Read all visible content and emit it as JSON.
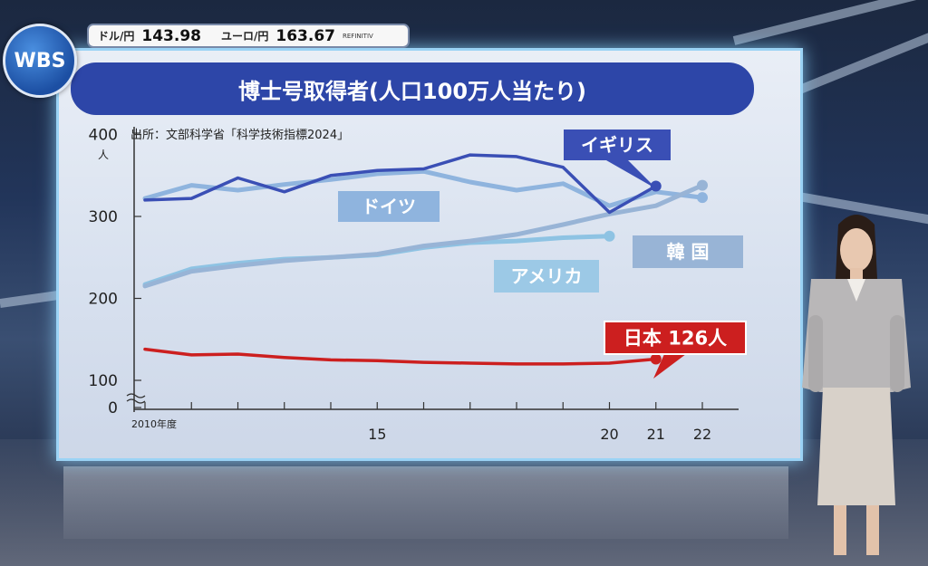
{
  "logo": {
    "text": "WBS"
  },
  "ticker": {
    "usd_label": "ドル/円",
    "usd_value": "143.98",
    "eur_label": "ユーロ/円",
    "eur_value": "163.67",
    "source": "REFINITIV"
  },
  "chart_data": {
    "type": "line",
    "title": "博士号取得者(人口100万人当たり)",
    "source": "出所：文部科学省「科学技術指標2024」",
    "y_unit": "人",
    "y_ticks": [
      0,
      100,
      200,
      300,
      400
    ],
    "ylim": [
      0,
      400
    ],
    "axis_break": true,
    "xlim": [
      2010,
      2022
    ],
    "x_ticks": [
      {
        "value": 2010,
        "label": "2010年度"
      },
      {
        "value": 2015,
        "label": "15"
      },
      {
        "value": 2020,
        "label": "20"
      },
      {
        "value": 2021,
        "label": "21"
      },
      {
        "value": 2022,
        "label": "22"
      }
    ],
    "grid": false,
    "series": [
      {
        "name": "イギリス",
        "color": "#3a4fb5",
        "x": [
          2010,
          2011,
          2012,
          2013,
          2014,
          2015,
          2016,
          2017,
          2018,
          2019,
          2020,
          2021
        ],
        "y": [
          320,
          322,
          347,
          330,
          350,
          356,
          358,
          375,
          373,
          360,
          305,
          337
        ]
      },
      {
        "name": "ドイツ",
        "color": "#8fb4de",
        "x": [
          2010,
          2011,
          2012,
          2013,
          2014,
          2015,
          2016,
          2017,
          2018,
          2019,
          2020,
          2021,
          2022
        ],
        "y": [
          322,
          338,
          332,
          339,
          345,
          352,
          355,
          342,
          332,
          340,
          313,
          330,
          323
        ]
      },
      {
        "name": "アメリカ",
        "color": "#8ec3e3",
        "x": [
          2010,
          2011,
          2012,
          2013,
          2014,
          2015,
          2016,
          2017,
          2018,
          2019,
          2020
        ],
        "y": [
          217,
          236,
          243,
          248,
          250,
          253,
          262,
          268,
          270,
          274,
          276
        ]
      },
      {
        "name": "韓国",
        "color": "#98b4d6",
        "x": [
          2010,
          2011,
          2012,
          2013,
          2014,
          2015,
          2016,
          2017,
          2018,
          2019,
          2020,
          2021,
          2022
        ],
        "y": [
          215,
          233,
          240,
          246,
          250,
          254,
          264,
          270,
          278,
          290,
          303,
          313,
          338
        ]
      },
      {
        "name": "日本",
        "color": "#cc1f1f",
        "x": [
          2010,
          2011,
          2012,
          2013,
          2014,
          2015,
          2016,
          2017,
          2018,
          2019,
          2020,
          2021
        ],
        "y": [
          138,
          131,
          132,
          128,
          125,
          124,
          122,
          121,
          120,
          120,
          121,
          126
        ]
      }
    ],
    "callouts": [
      {
        "series": "イギリス",
        "text": "イギリス"
      },
      {
        "series": "ドイツ",
        "text": "ドイツ"
      },
      {
        "series": "アメリカ",
        "text": "アメリカ"
      },
      {
        "series": "韓国",
        "text": "韓 国"
      },
      {
        "series": "日本",
        "text": "日本 126人"
      }
    ]
  }
}
